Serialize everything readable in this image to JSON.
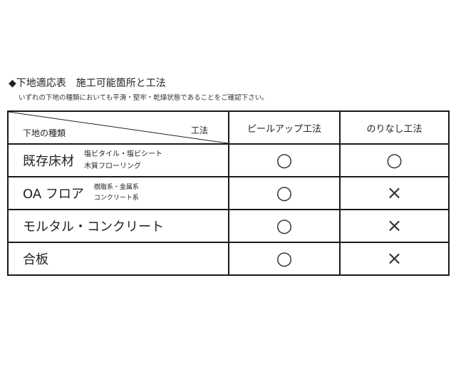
{
  "title": "◆下地適応表　施工可能箇所と工法",
  "note": "いずれの下地の種類においても平滑・堅牢・乾燥状態であることをご確認下さい。",
  "table": {
    "corner_row_label": "下地の種類",
    "corner_col_label": "工法",
    "methods": [
      "ピールアップ工法",
      "のりなし工法"
    ],
    "rows": [
      {
        "name": "既存床材",
        "sub": [
          "塩ビタイル・塩ビシート",
          "木質フローリング"
        ],
        "marks": [
          "○",
          "○"
        ]
      },
      {
        "name": "OA フロア",
        "sub": [
          "樹脂系・金属系",
          "コンクリート系"
        ],
        "marks": [
          "○",
          "×"
        ]
      },
      {
        "name": "モルタル・コンクリート",
        "sub": [],
        "marks": [
          "○",
          "×"
        ]
      },
      {
        "name": "合板",
        "sub": [],
        "marks": [
          "○",
          "×"
        ]
      }
    ]
  }
}
